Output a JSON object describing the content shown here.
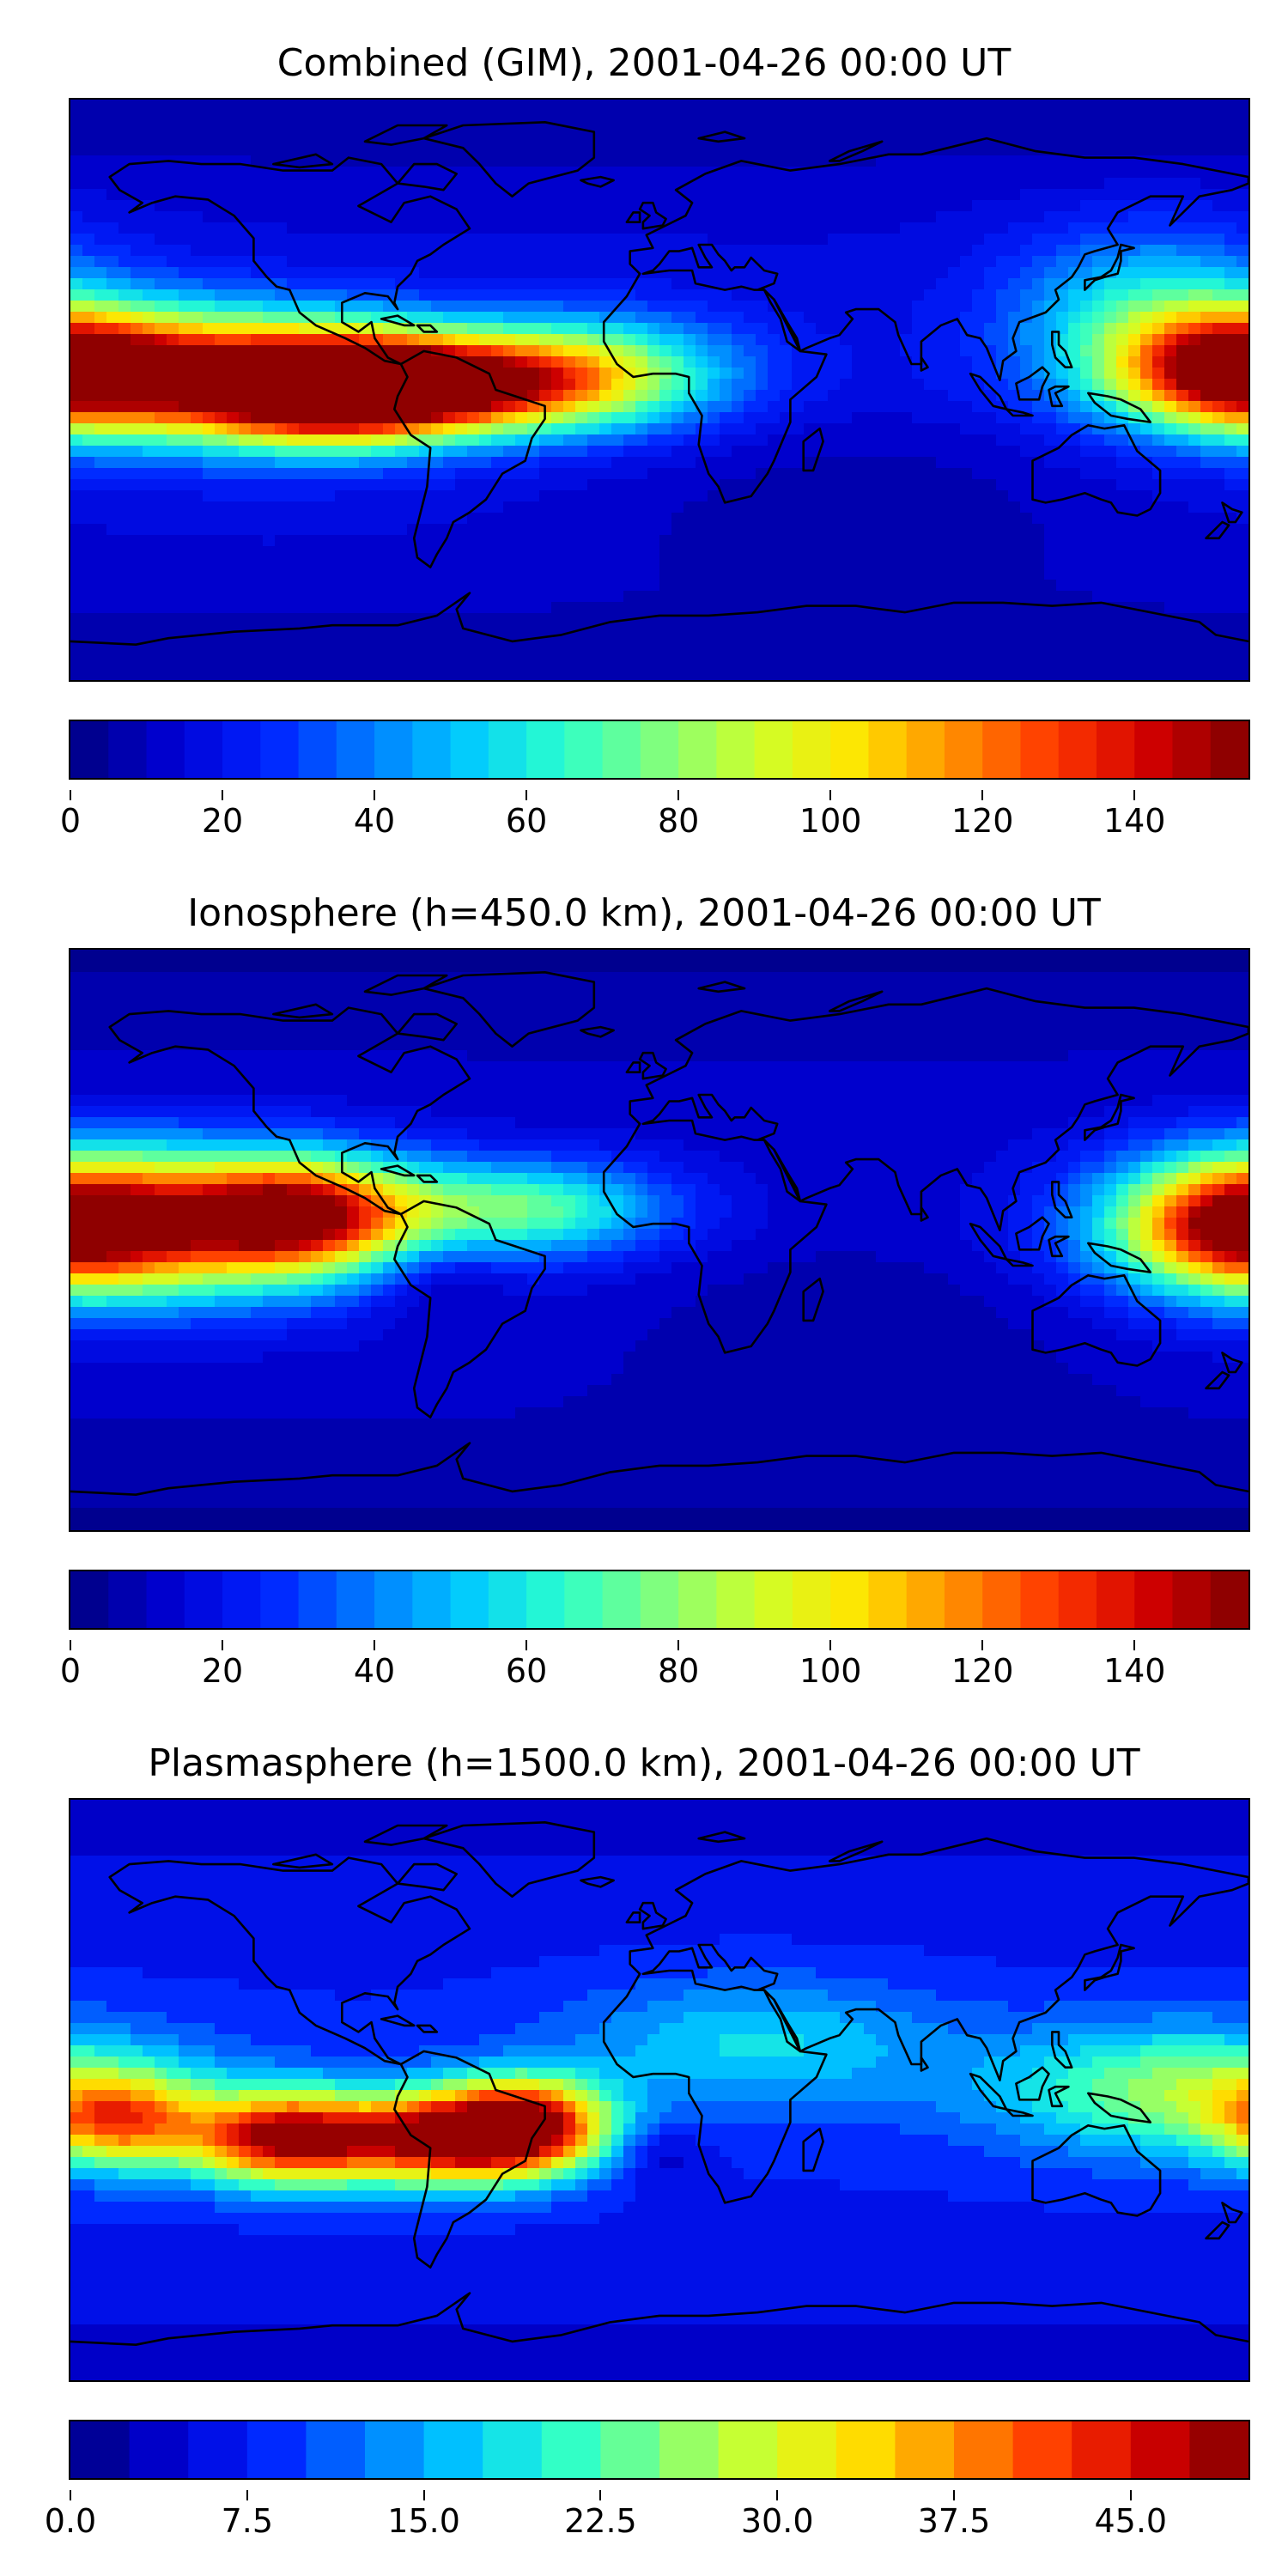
{
  "panels": [
    {
      "title": "Combined (GIM), 2001-04-26 00:00 UT",
      "colorbar": {
        "min": 0,
        "max": 155,
        "levels": 31,
        "ticks": [
          "0",
          "20",
          "40",
          "60",
          "80",
          "100",
          "120",
          "140"
        ],
        "tick_values": [
          0,
          20,
          40,
          60,
          80,
          100,
          120,
          140
        ]
      },
      "field": {
        "base": 16,
        "lat_scale": 0.25,
        "blobs": [
          {
            "lon": -140,
            "lat": 5,
            "amp": 95,
            "sx": 45,
            "sy": 14
          },
          {
            "lon": -100,
            "lat": 0,
            "amp": 135,
            "sx": 28,
            "sy": 11
          },
          {
            "lon": -60,
            "lat": 2,
            "amp": 90,
            "sx": 30,
            "sy": 10
          },
          {
            "lon": -20,
            "lat": 5,
            "amp": 60,
            "sx": 30,
            "sy": 12
          },
          {
            "lon": 178,
            "lat": 6,
            "amp": 105,
            "sx": 25,
            "sy": 12
          },
          {
            "lon": 150,
            "lat": 25,
            "amp": 40,
            "sx": 30,
            "sy": 18
          },
          {
            "lon": 60,
            "lat": -30,
            "amp": -10,
            "sx": 60,
            "sy": 25
          }
        ]
      }
    },
    {
      "title": "Ionosphere  (h=450.0 km), 2001-04-26 00:00 UT",
      "colorbar": {
        "min": 0,
        "max": 155,
        "levels": 31,
        "ticks": [
          "0",
          "20",
          "40",
          "60",
          "80",
          "100",
          "120",
          "140"
        ],
        "tick_values": [
          0,
          20,
          40,
          60,
          80,
          100,
          120,
          140
        ]
      },
      "field": {
        "base": 12,
        "lat_scale": 0.2,
        "blobs": [
          {
            "lon": -150,
            "lat": 5,
            "amp": 85,
            "sx": 45,
            "sy": 16
          },
          {
            "lon": -110,
            "lat": 8,
            "amp": 100,
            "sx": 25,
            "sy": 12
          },
          {
            "lon": -40,
            "lat": 10,
            "amp": 55,
            "sx": 30,
            "sy": 10
          },
          {
            "lon": 178,
            "lat": 5,
            "amp": 100,
            "sx": 25,
            "sy": 14
          },
          {
            "lon": -70,
            "lat": -10,
            "amp": -15,
            "sx": 15,
            "sy": 10
          },
          {
            "lon": 60,
            "lat": -20,
            "amp": -8,
            "sx": 50,
            "sy": 25
          }
        ]
      }
    },
    {
      "title": "Plasmasphere (h=1500.0 km), 2001-04-26 00:00 UT",
      "colorbar": {
        "min": 0,
        "max": 50,
        "levels": 20,
        "ticks": [
          "0.0",
          "7.5",
          "15.0",
          "22.5",
          "30.0",
          "37.5",
          "45.0"
        ],
        "tick_values": [
          0,
          7.5,
          15,
          22.5,
          30,
          37.5,
          45
        ]
      },
      "field": {
        "base": 7,
        "lat_scale": 0.06,
        "blobs": [
          {
            "lon": -165,
            "lat": -10,
            "amp": 25,
            "sx": 18,
            "sy": 10
          },
          {
            "lon": -115,
            "lat": -15,
            "amp": 38,
            "sx": 20,
            "sy": 10
          },
          {
            "lon": -65,
            "lat": -15,
            "amp": 40,
            "sx": 25,
            "sy": 10
          },
          {
            "lon": -40,
            "lat": -10,
            "amp": 30,
            "sx": 18,
            "sy": 10
          },
          {
            "lon": 160,
            "lat": 0,
            "amp": 18,
            "sx": 40,
            "sy": 14
          },
          {
            "lon": 30,
            "lat": 15,
            "amp": 10,
            "sx": 40,
            "sy": 14
          },
          {
            "lon": 0,
            "lat": -20,
            "amp": -5,
            "sx": 10,
            "sy": 8
          }
        ]
      }
    }
  ],
  "colors": {
    "jet": [
      "#00007f",
      "#0000d0",
      "#0020ff",
      "#0078ff",
      "#00c8ff",
      "#2affce",
      "#7fff7f",
      "#ceff2a",
      "#ffe500",
      "#ff8f00",
      "#ff3800",
      "#d00000",
      "#7f0000"
    ],
    "coastline": "#000000"
  },
  "chart_data": [
    {
      "type": "heatmap",
      "title": "Combined (GIM), 2001-04-26 00:00 UT",
      "colorbar_ticks": [
        0,
        20,
        40,
        60,
        80,
        100,
        120,
        140
      ],
      "colorbar_range": [
        0,
        155
      ],
      "xlim": [
        -180,
        180
      ],
      "ylim": [
        -90,
        90
      ]
    },
    {
      "type": "heatmap",
      "title": "Ionosphere  (h=450.0 km), 2001-04-26 00:00 UT",
      "colorbar_ticks": [
        0,
        20,
        40,
        60,
        80,
        100,
        120,
        140
      ],
      "colorbar_range": [
        0,
        155
      ],
      "xlim": [
        -180,
        180
      ],
      "ylim": [
        -90,
        90
      ]
    },
    {
      "type": "heatmap",
      "title": "Plasmasphere (h=1500.0 km), 2001-04-26 00:00 UT",
      "colorbar_ticks": [
        0,
        7.5,
        15,
        22.5,
        30,
        37.5,
        45
      ],
      "colorbar_range": [
        0,
        50
      ],
      "xlim": [
        -180,
        180
      ],
      "ylim": [
        -90,
        90
      ]
    }
  ]
}
